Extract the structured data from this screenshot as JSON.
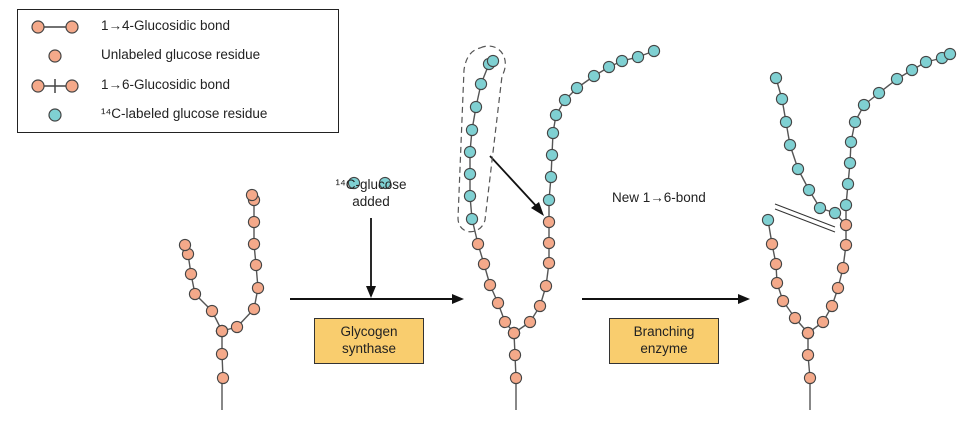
{
  "legend": {
    "items": [
      {
        "icon": "alpha-1-4-bond-icon",
        "label": "1→4-Glucosidic bond"
      },
      {
        "icon": "unlabeled-glucose-icon",
        "label": "Unlabeled glucose residue"
      },
      {
        "icon": "alpha-1-6-bond-icon",
        "label": "1→6-Glucosidic bond"
      },
      {
        "icon": "labeled-glucose-icon",
        "label": "¹⁴C-labeled glucose residue"
      }
    ]
  },
  "labels": {
    "glucose_added_line1": "¹⁴C-glucose",
    "glucose_added_line2": "added",
    "new_bond": "New 1→6-bond"
  },
  "enzymes": {
    "synthase_line1": "Glycogen",
    "synthase_line2": "synthase",
    "branching_line1": "Branching",
    "branching_line2": "enzyme"
  },
  "colors": {
    "unlabeled": "#f4a98a",
    "labeled": "#7fd0d2",
    "outline": "#444444",
    "enzyme_box": "#f9cd6e"
  }
}
